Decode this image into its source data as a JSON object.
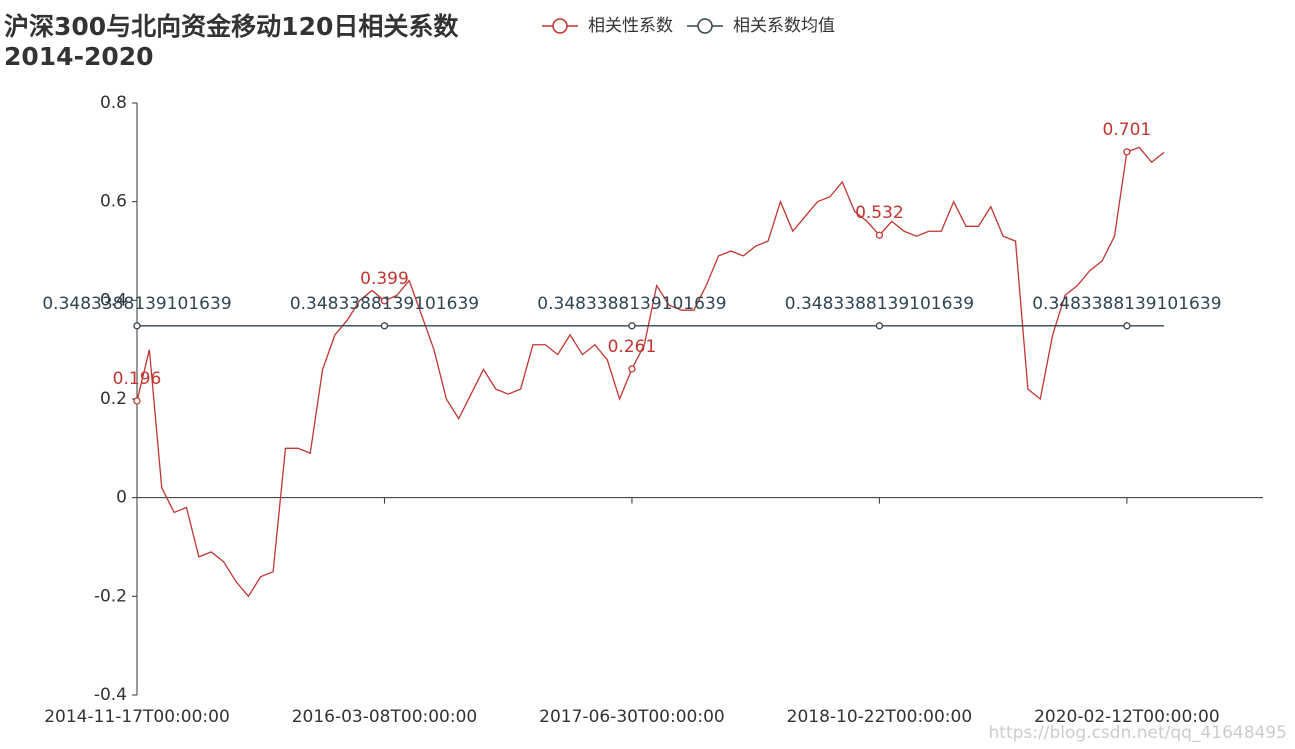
{
  "chart_data": {
    "type": "line",
    "title": "沪深300与北向资金移动120日相关系数\n 2014-2020",
    "watermark": "https://blog.csdn.net/qq_41648495",
    "categories": [
      "2014-11-17T00:00:00",
      null,
      null,
      null,
      null,
      null,
      null,
      null,
      null,
      null,
      null,
      null,
      null,
      null,
      null,
      null,
      null,
      null,
      null,
      null,
      "2016-03-08T00:00:00",
      null,
      null,
      null,
      null,
      null,
      null,
      null,
      null,
      null,
      null,
      null,
      null,
      null,
      null,
      null,
      null,
      null,
      null,
      null,
      "2017-06-30T00:00:00",
      null,
      null,
      null,
      null,
      null,
      null,
      null,
      null,
      null,
      null,
      null,
      null,
      null,
      null,
      null,
      null,
      null,
      null,
      null,
      "2018-10-22T00:00:00",
      null,
      null,
      null,
      null,
      null,
      null,
      null,
      null,
      null,
      null,
      null,
      null,
      null,
      null,
      null,
      null,
      null,
      null,
      null,
      "2020-02-12T00:00:00",
      null,
      null,
      null,
      null,
      null,
      null,
      null,
      null,
      null,
      null,
      null
    ],
    "series": [
      {
        "name": "相关性系数",
        "color": "#c23531",
        "values": [
          0.196,
          0.3,
          0.02,
          -0.03,
          -0.02,
          -0.12,
          -0.11,
          -0.13,
          -0.17,
          -0.2,
          -0.16,
          -0.15,
          0.1,
          0.1,
          0.09,
          0.26,
          0.33,
          0.36,
          0.4,
          0.42,
          0.399,
          0.41,
          0.44,
          0.37,
          0.3,
          0.2,
          0.16,
          0.21,
          0.26,
          0.22,
          0.21,
          0.22,
          0.31,
          0.31,
          0.29,
          0.33,
          0.29,
          0.31,
          0.28,
          0.2,
          0.261,
          0.31,
          0.43,
          0.39,
          0.38,
          0.38,
          0.43,
          0.49,
          0.5,
          0.49,
          0.51,
          0.52,
          0.6,
          0.54,
          0.57,
          0.6,
          0.61,
          0.64,
          0.58,
          0.56,
          0.532,
          0.56,
          0.54,
          0.53,
          0.54,
          0.54,
          0.6,
          0.55,
          0.55,
          0.59,
          0.53,
          0.52,
          0.22,
          0.2,
          0.33,
          0.41,
          0.43,
          0.46,
          0.48,
          0.53,
          0.701,
          0.71,
          0.68,
          0.7,
          null,
          null,
          null,
          null,
          null,
          null,
          null,
          null
        ]
      },
      {
        "name": "相关系数均值",
        "color": "#2f4554",
        "values": [
          0.3483388139101639,
          0.3483388139101639,
          0.3483388139101639,
          0.3483388139101639,
          0.3483388139101639,
          0.3483388139101639,
          0.3483388139101639,
          0.3483388139101639,
          0.3483388139101639,
          0.3483388139101639,
          0.3483388139101639,
          0.3483388139101639,
          0.3483388139101639,
          0.3483388139101639,
          0.3483388139101639,
          0.3483388139101639,
          0.3483388139101639,
          0.3483388139101639,
          0.3483388139101639,
          0.3483388139101639,
          0.3483388139101639,
          0.3483388139101639,
          0.3483388139101639,
          0.3483388139101639,
          0.3483388139101639,
          0.3483388139101639,
          0.3483388139101639,
          0.3483388139101639,
          0.3483388139101639,
          0.3483388139101639,
          0.3483388139101639,
          0.3483388139101639,
          0.3483388139101639,
          0.3483388139101639,
          0.3483388139101639,
          0.3483388139101639,
          0.3483388139101639,
          0.3483388139101639,
          0.3483388139101639,
          0.3483388139101639,
          0.3483388139101639,
          0.3483388139101639,
          0.3483388139101639,
          0.3483388139101639,
          0.3483388139101639,
          0.3483388139101639,
          0.3483388139101639,
          0.3483388139101639,
          0.3483388139101639,
          0.3483388139101639,
          0.3483388139101639,
          0.3483388139101639,
          0.3483388139101639,
          0.3483388139101639,
          0.3483388139101639,
          0.3483388139101639,
          0.3483388139101639,
          0.3483388139101639,
          0.3483388139101639,
          0.3483388139101639,
          0.3483388139101639,
          0.3483388139101639,
          0.3483388139101639,
          0.3483388139101639,
          0.3483388139101639,
          0.3483388139101639,
          0.3483388139101639,
          0.3483388139101639,
          0.3483388139101639,
          0.3483388139101639,
          0.3483388139101639,
          0.3483388139101639,
          0.3483388139101639,
          0.3483388139101639,
          0.3483388139101639,
          0.3483388139101639,
          0.3483388139101639,
          0.3483388139101639,
          0.3483388139101639,
          0.3483388139101639,
          0.3483388139101639,
          0.3483388139101639,
          0.3483388139101639,
          0.3483388139101639,
          null,
          null,
          null,
          null,
          null,
          null,
          null,
          null
        ]
      }
    ],
    "ylim": [
      -0.4,
      0.8
    ],
    "yticks": [
      -0.4,
      -0.2,
      0,
      0.2,
      0.4,
      0.6,
      0.8
    ]
  }
}
